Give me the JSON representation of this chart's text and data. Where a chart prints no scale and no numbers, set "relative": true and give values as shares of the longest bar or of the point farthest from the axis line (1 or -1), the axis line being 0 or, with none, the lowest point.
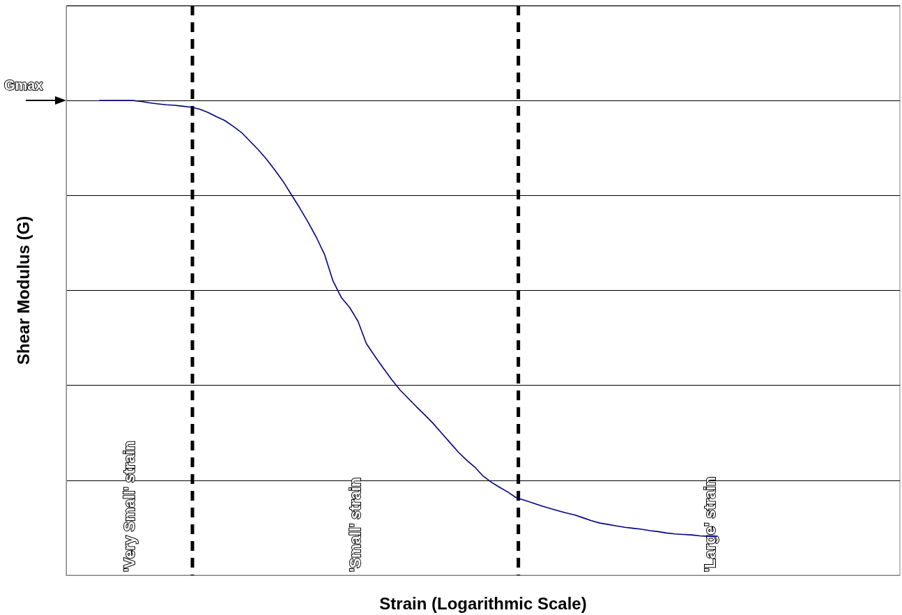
{
  "chart_data": {
    "type": "line",
    "xlabel": "Strain (Logarithmic Scale)",
    "ylabel": "Shear Modulus (G)",
    "relative": true,
    "grid": "y",
    "marker": "none",
    "line_style": "solid",
    "categories": [
      null,
      null,
      null,
      null,
      null,
      null,
      null,
      null,
      null,
      null,
      null,
      null,
      null,
      null,
      null,
      null,
      null,
      null,
      null,
      null,
      null,
      null,
      null,
      null,
      null,
      null,
      null,
      null,
      null,
      null,
      null,
      null,
      null,
      null,
      null,
      null,
      null,
      null,
      null,
      null,
      null,
      null,
      null,
      null,
      null,
      null,
      null,
      null,
      null,
      null,
      null,
      null,
      null,
      null,
      null,
      null,
      null,
      null,
      null,
      null,
      null,
      null,
      null,
      null,
      null,
      null,
      null,
      null,
      null,
      null,
      null,
      null,
      null,
      null,
      null,
      null,
      null,
      null,
      null,
      null,
      null,
      null,
      null,
      null,
      null,
      null,
      null,
      null,
      null,
      null,
      null,
      null,
      null,
      null,
      null,
      null,
      null,
      null,
      null,
      null,
      null
    ],
    "series": [
      {
        "color": "#000080",
        "values": [
          null,
          null,
          null,
          null,
          1.0,
          1.0,
          1.0,
          1.0,
          1.0,
          0.998,
          0.995,
          0.993,
          0.991,
          0.99,
          0.988,
          0.986,
          0.982,
          0.975,
          0.966,
          0.958,
          0.946,
          0.933,
          0.915,
          0.897,
          0.877,
          0.854,
          0.83,
          0.802,
          0.774,
          0.744,
          0.712,
          0.675,
          0.62,
          0.585,
          0.564,
          0.535,
          0.488,
          0.462,
          0.437,
          0.413,
          0.391,
          0.373,
          0.355,
          0.338,
          0.32,
          0.3,
          0.28,
          0.26,
          0.243,
          0.228,
          0.209,
          0.196,
          0.185,
          0.175,
          0.163,
          0.158,
          0.152,
          0.146,
          0.141,
          0.136,
          0.131,
          0.127,
          0.121,
          0.115,
          0.11,
          0.107,
          0.104,
          0.101,
          0.099,
          0.097,
          0.094,
          0.092,
          0.089,
          0.087,
          0.086,
          0.085,
          0.083,
          0.082,
          0.081,
          null,
          null,
          null,
          null,
          null,
          null,
          null,
          null,
          null,
          null,
          null,
          null,
          null,
          null,
          null,
          null,
          null,
          null,
          null,
          null,
          null,
          null
        ]
      }
    ],
    "annotations": [
      "Gmax",
      "'Very Small' strain",
      "'Small' strain",
      "'Large' strain"
    ]
  }
}
